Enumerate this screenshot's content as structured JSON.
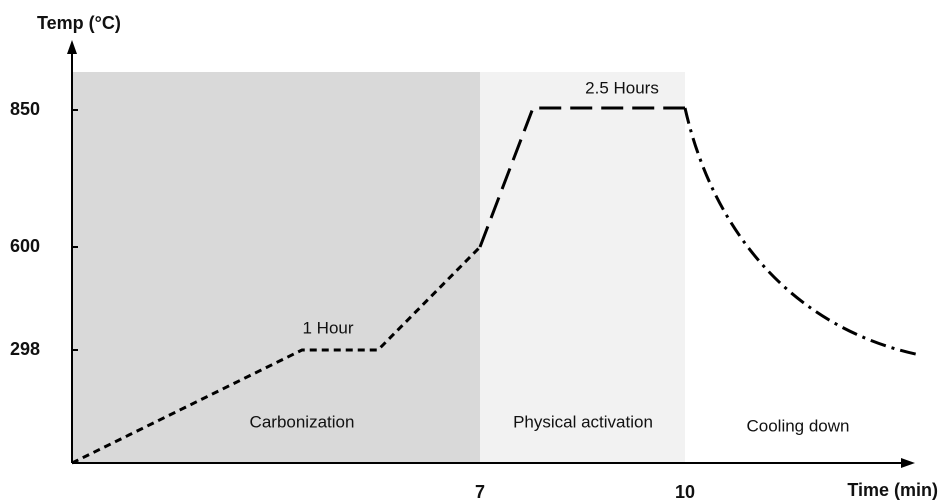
{
  "y_axis": {
    "label": "Temp (°C)",
    "ticks": [
      298,
      600,
      850
    ]
  },
  "x_axis": {
    "label": "Time (min)",
    "ticks": [
      7,
      10
    ]
  },
  "annotations": [
    "1 Hour",
    "2.5 Hours"
  ],
  "regions": [
    "Carbonization",
    "Physical activation",
    "Cooling down"
  ]
}
